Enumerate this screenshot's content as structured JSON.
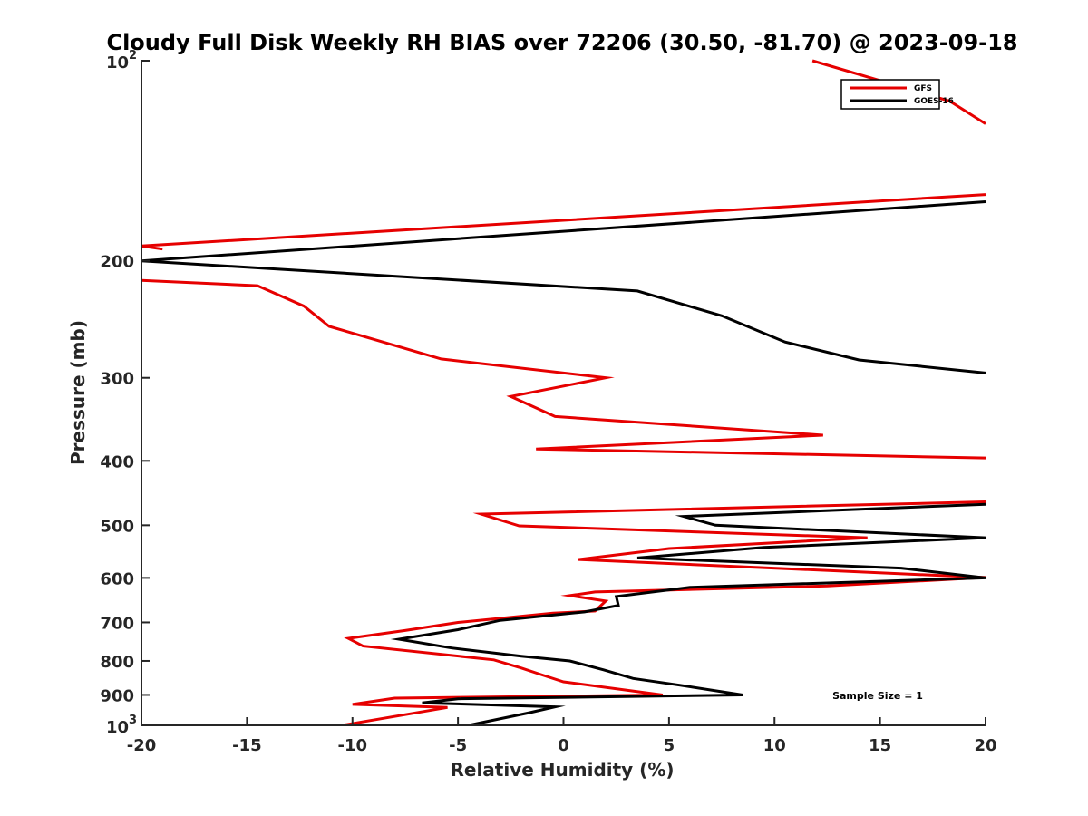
{
  "chart_data": {
    "type": "line",
    "title": "Cloudy Full Disk Weekly RH BIAS over 72206 (30.50, -81.70) @ 2023-09-18",
    "xlabel": "Relative Humidity (%)",
    "ylabel": "Pressure (mb)",
    "xlim": [
      -20,
      20
    ],
    "ylim": [
      100,
      1000
    ],
    "yscale": "log",
    "y_reversed": true,
    "grid": false,
    "legend_position": "top-right",
    "x_ticks": [
      -20,
      -15,
      -10,
      -5,
      0,
      5,
      10,
      15,
      20
    ],
    "x_tick_labels": [
      "-20",
      "-15",
      "-10",
      "-5",
      "0",
      "5",
      "10",
      "15",
      "20"
    ],
    "y_ticks": [
      100,
      200,
      300,
      400,
      500,
      600,
      700,
      800,
      900,
      1000
    ],
    "y_tick_labels": [
      {
        "text": "10",
        "sup": "2"
      },
      {
        "text": "200",
        "sup": ""
      },
      {
        "text": "300",
        "sup": ""
      },
      {
        "text": "400",
        "sup": ""
      },
      {
        "text": "500",
        "sup": ""
      },
      {
        "text": "600",
        "sup": ""
      },
      {
        "text": "700",
        "sup": ""
      },
      {
        "text": "800",
        "sup": ""
      },
      {
        "text": "900",
        "sup": ""
      },
      {
        "text": "10",
        "sup": "3"
      }
    ],
    "annotation": "Sample Size = 1",
    "series": [
      {
        "name": "GFS",
        "color": "#e60000",
        "segments": [
          [
            [
              11.8,
              100
            ],
            [
              18.3,
              115
            ],
            [
              20,
              124.4
            ]
          ],
          [
            [
              20,
              159
            ],
            [
              -20,
              190
            ],
            [
              -19,
              192
            ]
          ],
          [
            [
              -20,
              214
            ],
            [
              -14.5,
              218
            ],
            [
              -12.3,
              234
            ],
            [
              -11.1,
              251
            ],
            [
              -5.8,
              281
            ],
            [
              2.0,
              300
            ],
            [
              -2.5,
              320
            ],
            [
              -0.4,
              343
            ],
            [
              12.3,
              366
            ],
            [
              -1.3,
              384
            ],
            [
              20,
              396
            ]
          ],
          [
            [
              20,
              461
            ],
            [
              -3.9,
              481
            ],
            [
              -2.1,
              501
            ],
            [
              14.4,
              522
            ],
            [
              5.0,
              542
            ],
            [
              0.7,
              563
            ],
            [
              20,
              599
            ],
            [
              12.5,
              617
            ],
            [
              1.5,
              630
            ],
            [
              0.3,
              638
            ],
            [
              2.0,
              650
            ],
            [
              1.5,
              673
            ],
            [
              -0.5,
              678
            ],
            [
              -5.0,
              700
            ],
            [
              -7.5,
              720
            ],
            [
              -10.2,
              740
            ],
            [
              -9.5,
              760
            ],
            [
              -3.3,
              797
            ],
            [
              -2.0,
              820
            ],
            [
              -1.0,
              840
            ],
            [
              0.0,
              860
            ],
            [
              4.7,
              900
            ],
            [
              -8.0,
              910
            ],
            [
              -10.0,
              930
            ],
            [
              -5.5,
              940
            ],
            [
              -10.5,
              1000
            ]
          ]
        ]
      },
      {
        "name": "GOES-16",
        "color": "#000000",
        "segments": [
          [
            [
              20,
              163
            ],
            [
              -20,
              200
            ],
            [
              3.5,
              222
            ],
            [
              7.5,
              242
            ],
            [
              10.5,
              265
            ],
            [
              14.0,
              282
            ],
            [
              20,
              295
            ]
          ],
          [
            [
              20,
              465
            ],
            [
              5.7,
              485
            ],
            [
              7.2,
              500
            ],
            [
              20,
              522
            ],
            [
              9.5,
              540
            ],
            [
              3.5,
              560
            ],
            [
              16.0,
              580
            ],
            [
              20,
              600
            ],
            [
              6.0,
              620
            ],
            [
              2.5,
              640
            ],
            [
              2.6,
              660
            ],
            [
              1.0,
              675
            ],
            [
              -3.0,
              695
            ],
            [
              -5.0,
              718
            ],
            [
              -7.8,
              742
            ],
            [
              -5.3,
              765
            ],
            [
              -2.0,
              787
            ],
            [
              0.3,
              800
            ],
            [
              1.9,
              825
            ],
            [
              3.3,
              850
            ],
            [
              5.5,
              870
            ],
            [
              8.5,
              900
            ],
            [
              -5.0,
              912
            ],
            [
              -6.7,
              925
            ],
            [
              -0.4,
              938
            ],
            [
              -1.6,
              957
            ],
            [
              -4.5,
              1000
            ]
          ]
        ]
      }
    ]
  }
}
